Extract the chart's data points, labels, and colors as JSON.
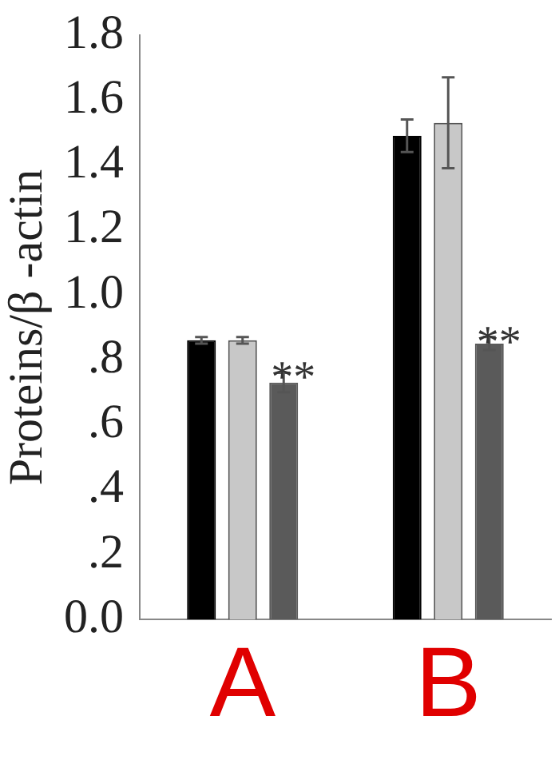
{
  "chart_data": {
    "type": "bar",
    "ylabel": "Proteins/β -actin",
    "categories": [
      "A",
      "B"
    ],
    "series": [
      {
        "color": "#000000",
        "values": [
          0.86,
          1.49
        ],
        "errors": [
          0.01,
          0.05
        ]
      },
      {
        "color": "#c8c8c8",
        "values": [
          0.86,
          1.53
        ],
        "errors": [
          0.01,
          0.14
        ]
      },
      {
        "color": "#5a5a5a",
        "values": [
          0.73,
          0.85
        ],
        "errors": [
          0.03,
          0.02
        ]
      }
    ],
    "ylim": [
      0,
      1.8
    ],
    "yticks": [
      {
        "value": 0,
        "label": "0.0"
      },
      {
        "value": 0.2,
        "label": ".2"
      },
      {
        "value": 0.4,
        "label": ".4"
      },
      {
        "value": 0.6,
        "label": ".6"
      },
      {
        "value": 0.8,
        "label": ".8"
      },
      {
        "value": 1.0,
        "label": "1.0"
      },
      {
        "value": 1.2,
        "label": "1.2"
      },
      {
        "value": 1.4,
        "label": "1.4"
      },
      {
        "value": 1.6,
        "label": "1.6"
      },
      {
        "value": 1.8,
        "label": "1.8"
      }
    ],
    "annotations": [
      "**",
      "**"
    ],
    "grid": false,
    "legend": false
  }
}
